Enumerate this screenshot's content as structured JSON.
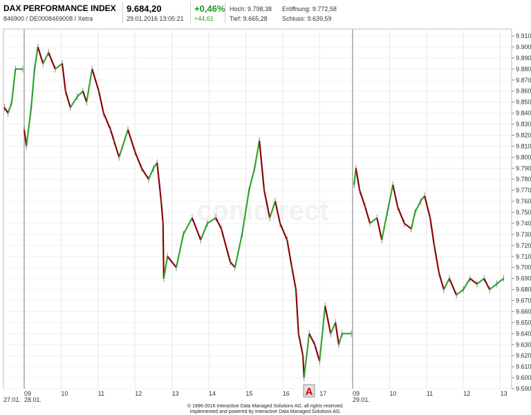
{
  "header": {
    "name": "DAX PERFORMANCE INDEX",
    "ids": "846900 / DE0008469008 / Xetra",
    "price": "9.684,20",
    "datetime": "29.01.2016 13:05:21",
    "change_pct": "+0,46%",
    "change_abs": "+44,61",
    "high": "Hoch: 9.798,38",
    "open": "Eröffnung: 9.772,58",
    "low": "Tief: 9.665,28",
    "close": "Schluss: 9.639,59"
  },
  "footer": {
    "line1": "© 1996-2016 Interactive Data Managed Solutions AG, all rights reserved.",
    "line2": "Implemented and powered by Interactive Data Managed Solutions AG."
  },
  "watermark": "comdirect",
  "marker_label": "A",
  "colors": {
    "up": "#2fa52f",
    "down": "#8b0000",
    "change": "#1a9a1a",
    "marker": "#e00000"
  },
  "chart_data": {
    "type": "line",
    "style": "candlestick-like intraday",
    "ylim": [
      9590,
      9910
    ],
    "yticks": [
      "9.590",
      "9.600",
      "9.610",
      "9.620",
      "9.630",
      "9.640",
      "9.650",
      "9.660",
      "9.670",
      "9.680",
      "9.690",
      "9.700",
      "9.710",
      "9.720",
      "9.730",
      "9.740",
      "9.750",
      "9.760",
      "9.770",
      "9.780",
      "9.790",
      "9.800",
      "9.810",
      "9.820",
      "9.830",
      "9.840",
      "9.850",
      "9.860",
      "9.870",
      "9.880",
      "9.890",
      "9.900",
      "9.910"
    ],
    "xticks": [
      {
        "session": 1,
        "hour": 9,
        "label": "09",
        "date": "28.01."
      },
      {
        "session": 1,
        "hour": 10,
        "label": "10"
      },
      {
        "session": 1,
        "hour": 11,
        "label": "11"
      },
      {
        "session": 1,
        "hour": 12,
        "label": "12"
      },
      {
        "session": 1,
        "hour": 13,
        "label": "13"
      },
      {
        "session": 1,
        "hour": 14,
        "label": "14"
      },
      {
        "session": 1,
        "hour": 15,
        "label": "15"
      },
      {
        "session": 1,
        "hour": 16,
        "label": "16"
      },
      {
        "session": 1,
        "hour": 17,
        "label": "17"
      },
      {
        "session": 2,
        "hour": 9,
        "label": "09",
        "date": "29.01."
      },
      {
        "session": 2,
        "hour": 10,
        "label": "10"
      },
      {
        "session": 2,
        "hour": 11,
        "label": "11"
      },
      {
        "session": 2,
        "hour": 12,
        "label": "12"
      },
      {
        "session": 2,
        "hour": 13,
        "label": "13"
      }
    ],
    "first_date": "27.01.",
    "y_position": "right",
    "grid": true,
    "sessions": [
      {
        "date": "27.01.",
        "points": [
          [
            17.0,
            9845
          ],
          [
            17.1,
            9840
          ],
          [
            17.2,
            9850
          ],
          [
            17.3,
            9880
          ],
          [
            17.5,
            9880
          ]
        ]
      },
      {
        "date": "28.01.",
        "points": [
          [
            9.0,
            9825
          ],
          [
            9.06,
            9810
          ],
          [
            9.19,
            9845
          ],
          [
            9.28,
            9880
          ],
          [
            9.37,
            9900
          ],
          [
            9.51,
            9885
          ],
          [
            9.66,
            9895
          ],
          [
            9.84,
            9880
          ],
          [
            10.03,
            9885
          ],
          [
            10.12,
            9860
          ],
          [
            10.25,
            9845
          ],
          [
            10.44,
            9855
          ],
          [
            10.59,
            9860
          ],
          [
            10.69,
            9850
          ],
          [
            10.84,
            9880
          ],
          [
            11.02,
            9860
          ],
          [
            11.15,
            9840
          ],
          [
            11.34,
            9825
          ],
          [
            11.43,
            9815
          ],
          [
            11.57,
            9800
          ],
          [
            11.81,
            9825
          ],
          [
            12.0,
            9805
          ],
          [
            12.18,
            9790
          ],
          [
            12.37,
            9780
          ],
          [
            12.5,
            9790
          ],
          [
            12.6,
            9795
          ],
          [
            12.71,
            9760
          ],
          [
            12.76,
            9740
          ],
          [
            12.78,
            9690
          ],
          [
            12.88,
            9710
          ],
          [
            13.12,
            9700
          ],
          [
            13.31,
            9730
          ],
          [
            13.55,
            9745
          ],
          [
            13.78,
            9725
          ],
          [
            13.96,
            9740
          ],
          [
            14.19,
            9745
          ],
          [
            14.34,
            9735
          ],
          [
            14.58,
            9705
          ],
          [
            14.71,
            9700
          ],
          [
            14.9,
            9730
          ],
          [
            15.09,
            9770
          ],
          [
            15.24,
            9790
          ],
          [
            15.37,
            9815
          ],
          [
            15.5,
            9770
          ],
          [
            15.65,
            9745
          ],
          [
            15.8,
            9760
          ],
          [
            15.93,
            9740
          ],
          [
            16.12,
            9725
          ],
          [
            16.25,
            9700
          ],
          [
            16.36,
            9680
          ],
          [
            16.43,
            9640
          ],
          [
            16.55,
            9620
          ],
          [
            16.58,
            9600
          ],
          [
            16.72,
            9640
          ],
          [
            16.87,
            9630
          ],
          [
            17.0,
            9615
          ],
          [
            17.15,
            9665
          ],
          [
            17.3,
            9640
          ],
          [
            17.43,
            9650
          ],
          [
            17.52,
            9630
          ],
          [
            17.61,
            9640
          ],
          [
            17.86,
            9640
          ]
        ]
      },
      {
        "date": "29.01.",
        "points": [
          [
            9.04,
            9775
          ],
          [
            9.09,
            9790
          ],
          [
            9.19,
            9770
          ],
          [
            9.34,
            9755
          ],
          [
            9.47,
            9740
          ],
          [
            9.66,
            9745
          ],
          [
            9.79,
            9725
          ],
          [
            9.94,
            9750
          ],
          [
            10.09,
            9775
          ],
          [
            10.22,
            9755
          ],
          [
            10.4,
            9740
          ],
          [
            10.59,
            9735
          ],
          [
            10.69,
            9750
          ],
          [
            10.84,
            9760
          ],
          [
            10.95,
            9765
          ],
          [
            11.1,
            9745
          ],
          [
            11.21,
            9720
          ],
          [
            11.34,
            9695
          ],
          [
            11.47,
            9680
          ],
          [
            11.62,
            9690
          ],
          [
            11.81,
            9675
          ],
          [
            12.0,
            9680
          ],
          [
            12.18,
            9690
          ],
          [
            12.37,
            9685
          ],
          [
            12.56,
            9690
          ],
          [
            12.71,
            9680
          ],
          [
            12.9,
            9685
          ],
          [
            13.09,
            9690
          ]
        ]
      }
    ]
  }
}
